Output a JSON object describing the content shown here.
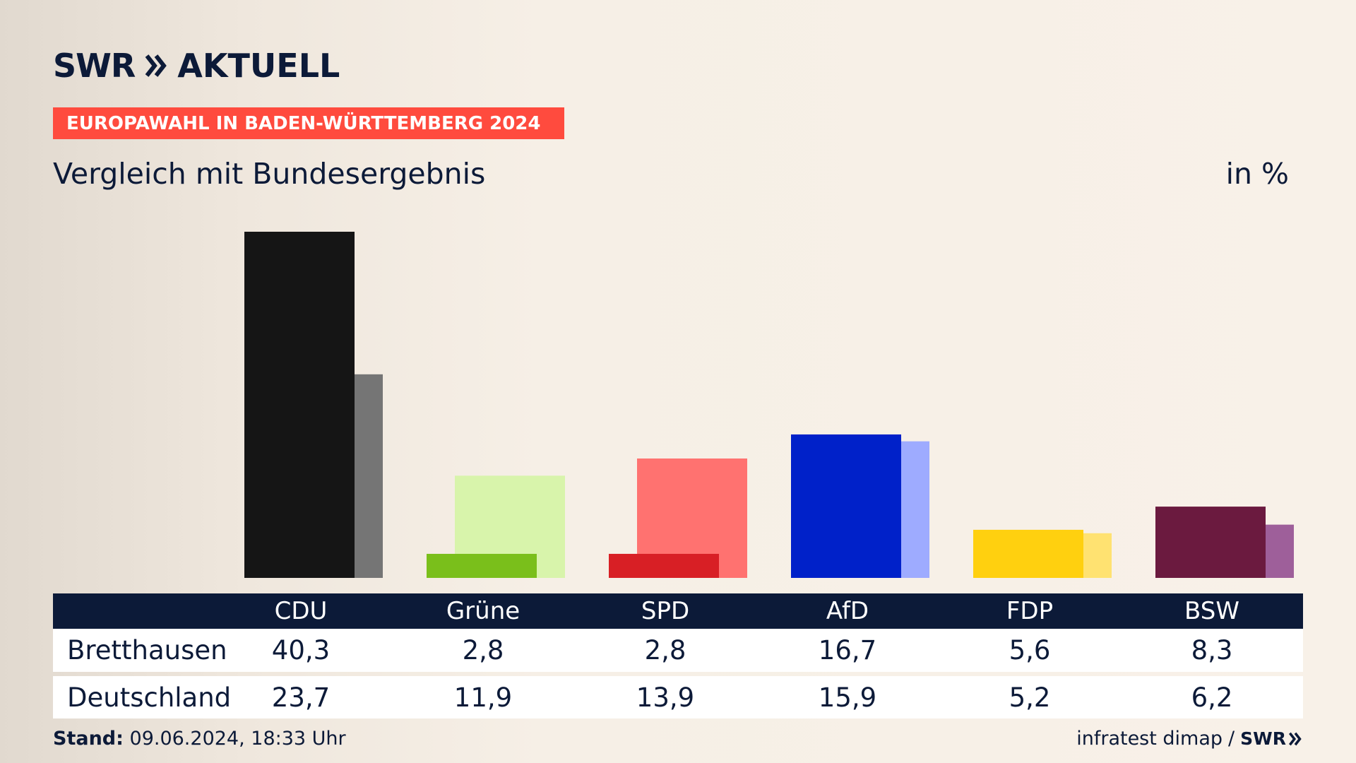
{
  "header": {
    "brand": "SWR",
    "app": "AKTUELL",
    "badge": "EUROPAWAHL IN BADEN-WÜRTTEMBERG 2024",
    "subtitle": "Vergleich mit Bundesergebnis",
    "unit": "in %"
  },
  "footer": {
    "stand_label": "Stand:",
    "stand_value": "09.06.2024, 18:33 Uhr",
    "source": "infratest dimap",
    "separator": "/",
    "brand": "SWR"
  },
  "table": {
    "row_labels": [
      "Bretthausen",
      "Deutschland"
    ]
  },
  "chart_data": {
    "type": "bar",
    "categories": [
      "CDU",
      "Grüne",
      "SPD",
      "AfD",
      "FDP",
      "BSW"
    ],
    "series": [
      {
        "name": "Bretthausen",
        "values": [
          40.3,
          2.8,
          2.8,
          16.7,
          5.6,
          8.3
        ],
        "labels": [
          "40,3",
          "2,8",
          "2,8",
          "16,7",
          "5,6",
          "8,3"
        ]
      },
      {
        "name": "Deutschland",
        "values": [
          23.7,
          11.9,
          13.9,
          15.9,
          5.2,
          6.2
        ],
        "labels": [
          "23,7",
          "11,9",
          "13,9",
          "15,9",
          "5,2",
          "6,2"
        ]
      }
    ],
    "colors": {
      "primary": [
        "#151515",
        "#7abf1b",
        "#d81f25",
        "#0021c9",
        "#ffd00f",
        "#6b1a3f"
      ],
      "secondary": [
        "#757575",
        "#d8f4ab",
        "#ff7270",
        "#9eabff",
        "#ffe271",
        "#9e5f9a"
      ]
    },
    "ylim": [
      0,
      40.3
    ]
  }
}
